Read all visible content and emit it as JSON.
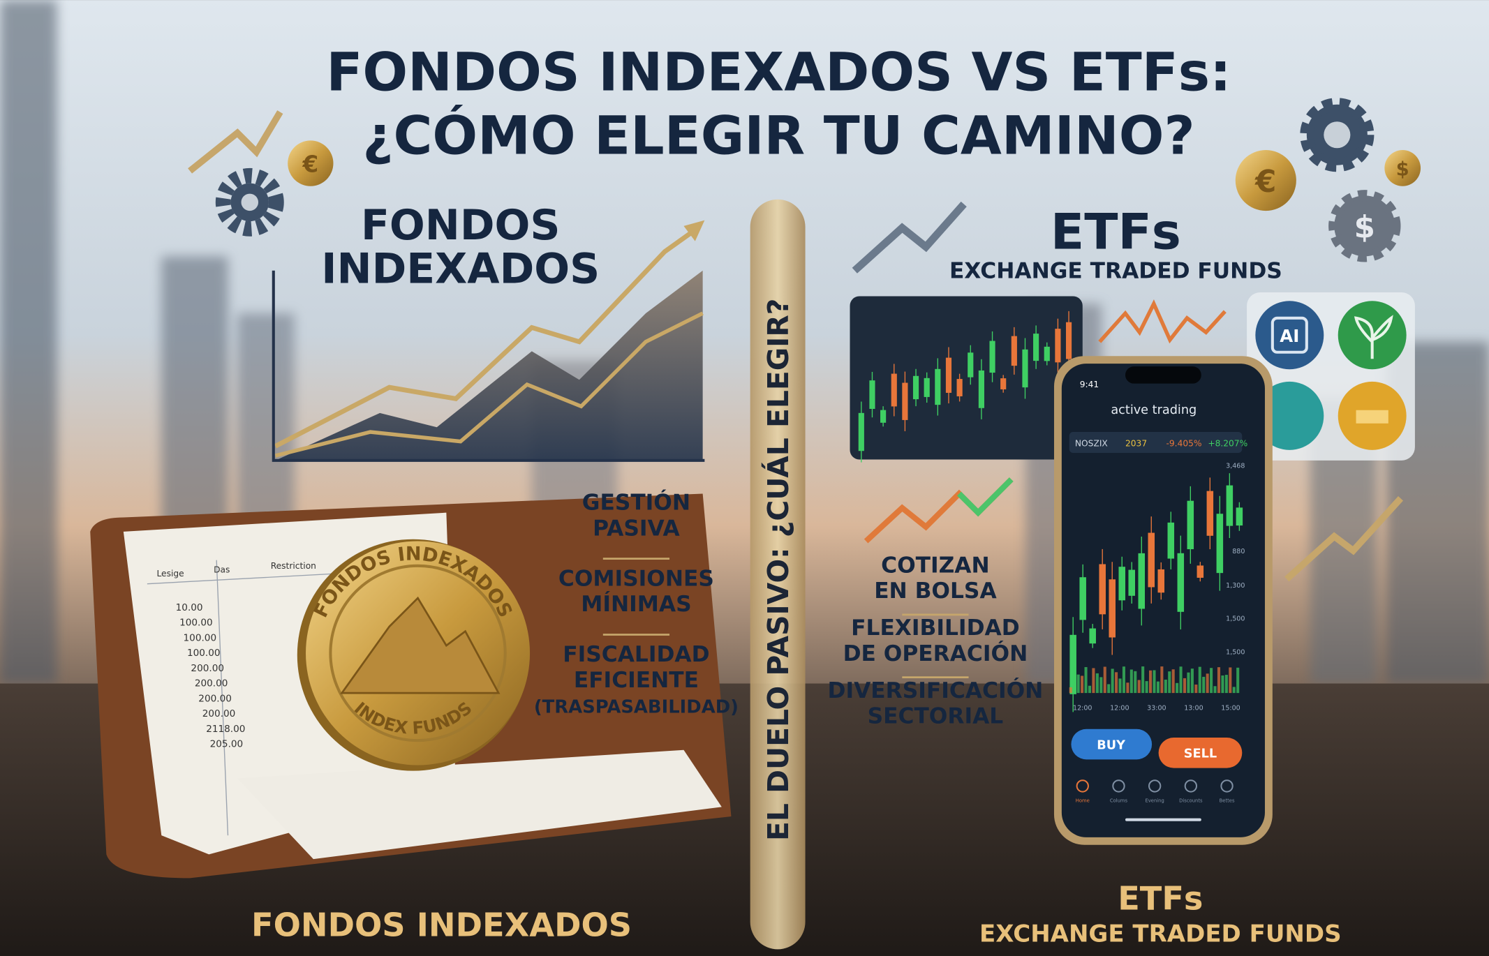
{
  "title": [
    "FONDOS INDEXADOS VS ETFs:",
    "¿CÓMO ELEGIR TU CAMINO?"
  ],
  "center_banner": "EL DUELO PASIVO: ¿CUÁL ELEGIR?",
  "left": {
    "heading": [
      "FONDOS",
      "INDEXADOS"
    ],
    "features": [
      [
        "GESTIÓN",
        "PASIVA"
      ],
      [
        "COMISIONES",
        "MÍNIMAS"
      ],
      [
        "FISCALIDAD",
        "EFICIENTE",
        "(TRASPASABILIDAD)"
      ]
    ],
    "footer": "FONDOS INDEXADOS",
    "coin": {
      "top": "FONDOS INDEXADOS",
      "bottom": "INDEX FUNDS"
    },
    "ledger": {
      "headers": [
        "Lesige",
        "Das",
        "Restriction"
      ],
      "values": [
        "10.00",
        "100.00",
        "100.00",
        "100.00",
        "200.00",
        "200.00",
        "200.00",
        "200.00",
        "2118.00",
        "205.00"
      ]
    }
  },
  "right": {
    "heading": "ETFs",
    "subheading": "EXCHANGE TRADED FUNDS",
    "features": [
      [
        "COTIZAN",
        "EN BOLSA"
      ],
      [
        "FLEXIBILIDAD",
        "DE OPERACIÓN"
      ],
      [
        "DIVERSIFICACIÓN",
        "SECTORIAL"
      ]
    ],
    "footer": {
      "heading": "ETFs",
      "subheading": "EXCHANGE TRADED FUNDS"
    },
    "icons": [
      "AI"
    ],
    "coins": [
      "€",
      "€",
      "$",
      "$"
    ],
    "phone": {
      "time": "9:41",
      "header": "active trading",
      "ticker": [
        "NOSZIX",
        "2037",
        "-9.405%",
        "+8.207%"
      ],
      "axis": [
        "3,468",
        "880",
        "1,300",
        "1,500",
        "1,500"
      ],
      "times": [
        "12:00",
        "12:00",
        "33:00",
        "13:00",
        "15:00"
      ],
      "buy": "BUY",
      "sell": "SELL",
      "nav": [
        "Home",
        "Colums",
        "Evening",
        "Discounts",
        "Bettes"
      ]
    }
  }
}
